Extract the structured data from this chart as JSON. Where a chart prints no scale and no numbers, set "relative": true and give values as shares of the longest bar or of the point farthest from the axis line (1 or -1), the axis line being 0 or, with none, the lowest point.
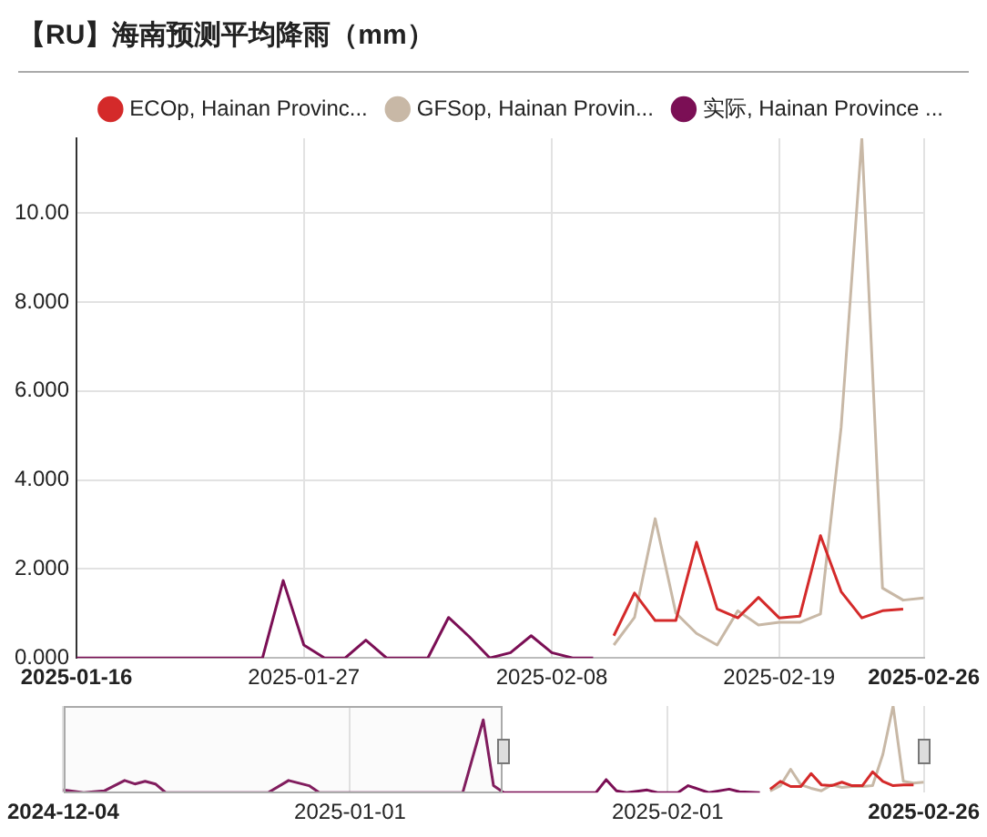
{
  "chart_data": [
    {
      "type": "line",
      "title": "【RU】海南预测平均降雨（mm）",
      "xlim": [
        "2025-01-16",
        "2025-02-26"
      ],
      "xticks": [
        "2025-01-16",
        "2025-01-27",
        "2025-02-08",
        "2025-02-19",
        "2025-02-26"
      ],
      "ylim": [
        0,
        11.68
      ],
      "yticks": [
        {
          "value": 0,
          "label": "0.000"
        },
        {
          "value": 2,
          "label": "2.000"
        },
        {
          "value": 4,
          "label": "4.000"
        },
        {
          "value": 6,
          "label": "6.000"
        },
        {
          "value": 8,
          "label": "8.000"
        },
        {
          "value": 10,
          "label": "10.00"
        }
      ],
      "grid": true,
      "legend": "top right",
      "marker": "none",
      "line_style": "solid",
      "series": [
        {
          "name": "ECOp, Hainan Provinc...",
          "color": "#d42a2a",
          "x": [
            "2025-02-11",
            "2025-02-12",
            "2025-02-13",
            "2025-02-14",
            "2025-02-15",
            "2025-02-16",
            "2025-02-17",
            "2025-02-18",
            "2025-02-19",
            "2025-02-20",
            "2025-02-21",
            "2025-02-22",
            "2025-02-23",
            "2025-02-24",
            "2025-02-25"
          ],
          "values": [
            0.5,
            1.46,
            0.84,
            0.84,
            2.6,
            1.1,
            0.9,
            1.36,
            0.9,
            0.94,
            2.75,
            1.49,
            0.9,
            1.06,
            1.1
          ]
        },
        {
          "name": "GFSop, Hainan Provin...",
          "color": "#c8b8a6",
          "x": [
            "2025-02-11",
            "2025-02-12",
            "2025-02-13",
            "2025-02-14",
            "2025-02-15",
            "2025-02-16",
            "2025-02-17",
            "2025-02-18",
            "2025-02-19",
            "2025-02-20",
            "2025-02-21",
            "2025-02-22",
            "2025-02-23",
            "2025-02-24",
            "2025-02-25",
            "2025-02-26"
          ],
          "values": [
            0.29,
            0.91,
            3.13,
            1.01,
            0.55,
            0.29,
            1.06,
            0.74,
            0.8,
            0.8,
            0.99,
            5.19,
            11.68,
            1.57,
            1.3,
            1.35
          ]
        },
        {
          "name": "实际, Hainan Province ...",
          "color": "#7b0f55",
          "x": [
            "2025-01-16",
            "2025-01-17",
            "2025-01-18",
            "2025-01-19",
            "2025-01-20",
            "2025-01-21",
            "2025-01-22",
            "2025-01-23",
            "2025-01-24",
            "2025-01-25",
            "2025-01-26",
            "2025-01-27",
            "2025-01-28",
            "2025-01-29",
            "2025-01-30",
            "2025-01-31",
            "2025-02-01",
            "2025-02-02",
            "2025-02-03",
            "2025-02-04",
            "2025-02-05",
            "2025-02-06",
            "2025-02-07",
            "2025-02-08",
            "2025-02-09",
            "2025-02-10"
          ],
          "values": [
            0,
            0,
            0,
            0,
            0,
            0,
            0,
            0,
            0,
            0,
            1.74,
            0.29,
            0,
            0,
            0.4,
            0,
            0,
            0,
            0.91,
            0.48,
            0,
            0.12,
            0.5,
            0.12,
            0,
            0
          ]
        }
      ]
    },
    {
      "type": "line",
      "relative": true,
      "xlim": [
        "2024-12-04",
        "2025-02-26"
      ],
      "xticks": [
        "2024-12-04",
        "2025-01-01",
        "2025-02-01",
        "2025-02-26"
      ],
      "grid": "x",
      "marker": "none",
      "line_style": "solid",
      "series": [
        {
          "color": "#7b0f55",
          "x": [
            "2024-12-04",
            "2024-12-06",
            "2024-12-08",
            "2024-12-10",
            "2024-12-11",
            "2024-12-12",
            "2024-12-13",
            "2024-12-14",
            "2024-12-24",
            "2024-12-26",
            "2024-12-28",
            "2024-12-29",
            "2025-01-12",
            "2025-01-14",
            "2025-01-15",
            "2025-01-16",
            "2025-01-25",
            "2025-01-26",
            "2025-01-27",
            "2025-01-28",
            "2025-01-30",
            "2025-01-31",
            "2025-02-02",
            "2025-02-03",
            "2025-02-04",
            "2025-02-05",
            "2025-02-07",
            "2025-02-08",
            "2025-02-10"
          ],
          "values": [
            0.03,
            0,
            0.02,
            0.14,
            0.1,
            0.13,
            0.1,
            0,
            0,
            0.14,
            0.08,
            0,
            0,
            0.84,
            0.08,
            0,
            0,
            0.15,
            0.02,
            0,
            0.03,
            0,
            0,
            0.08,
            0.04,
            0,
            0.04,
            0.01,
            0
          ]
        },
        {
          "color": "#d42a2a",
          "x": [
            "2025-02-11",
            "2025-02-12",
            "2025-02-13",
            "2025-02-14",
            "2025-02-15",
            "2025-02-16",
            "2025-02-17",
            "2025-02-18",
            "2025-02-19",
            "2025-02-20",
            "2025-02-21",
            "2025-02-22",
            "2025-02-23",
            "2025-02-24",
            "2025-02-25"
          ],
          "values": [
            0.04,
            0.13,
            0.07,
            0.07,
            0.22,
            0.09,
            0.08,
            0.12,
            0.08,
            0.08,
            0.24,
            0.13,
            0.08,
            0.09,
            0.09
          ]
        },
        {
          "color": "#c8b8a6",
          "x": [
            "2025-02-11",
            "2025-02-12",
            "2025-02-13",
            "2025-02-14",
            "2025-02-15",
            "2025-02-16",
            "2025-02-17",
            "2025-02-18",
            "2025-02-19",
            "2025-02-20",
            "2025-02-21",
            "2025-02-22",
            "2025-02-23",
            "2025-02-24",
            "2025-02-25",
            "2025-02-26"
          ],
          "values": [
            0.02,
            0.08,
            0.27,
            0.09,
            0.05,
            0.02,
            0.09,
            0.06,
            0.07,
            0.07,
            0.08,
            0.44,
            1,
            0.13,
            0.11,
            0.12
          ]
        }
      ]
    }
  ]
}
